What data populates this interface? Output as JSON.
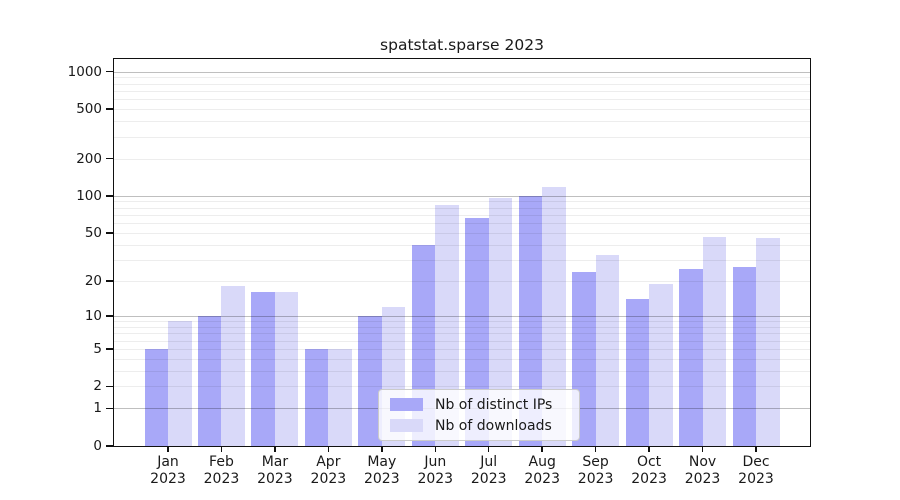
{
  "chart_data": {
    "type": "bar",
    "title": "spatstat.sparse 2023",
    "categories": [
      "Jan",
      "Feb",
      "Mar",
      "Apr",
      "May",
      "Jun",
      "Jul",
      "Aug",
      "Sep",
      "Oct",
      "Nov",
      "Dec"
    ],
    "category_year": "2023",
    "series": [
      {
        "name": "Nb of distinct IPs",
        "color": "#a8a8f8",
        "values": [
          5,
          10,
          16,
          5,
          10,
          40,
          66,
          100,
          24,
          14,
          25,
          26
        ]
      },
      {
        "name": "Nb of downloads",
        "color": "#d9d9f9",
        "values": [
          9,
          18,
          16,
          5,
          12,
          85,
          96,
          118,
          33,
          19,
          46,
          45
        ]
      }
    ],
    "yscale": "log1p",
    "y_ticks": [
      0,
      1,
      2,
      5,
      10,
      20,
      50,
      100,
      200,
      500,
      1000
    ],
    "ylim": [
      0,
      1260
    ],
    "grid": "horizontal: major lines at 1,10,100,1000; light minor log lines",
    "legend_position": "lower center inside plot",
    "colors": {
      "axis": "#111111",
      "major_grid": "#bfbfbf",
      "minor_grid": "#ededed",
      "background": "#ffffff"
    }
  }
}
